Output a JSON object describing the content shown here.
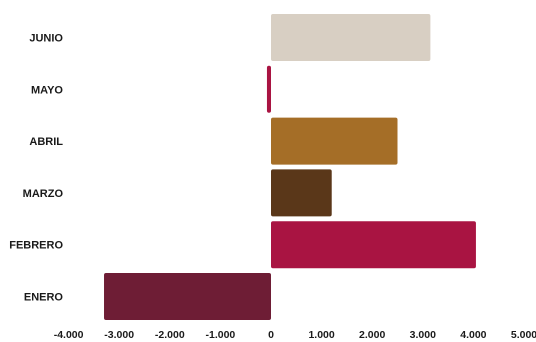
{
  "chart_data": {
    "type": "bar",
    "orientation": "horizontal",
    "categories": [
      "ENERO",
      "FEBRERO",
      "MARZO",
      "ABRIL",
      "MAYO",
      "JUNIO"
    ],
    "values": [
      -3300,
      4050,
      1200,
      2500,
      -80,
      3150
    ],
    "colors": [
      "#6e1d35",
      "#a91442",
      "#5a3719",
      "#a56e27",
      "#a91442",
      "#d8cfc3"
    ],
    "xlim": [
      -4000,
      5000
    ],
    "xticks": [
      -4000,
      -3000,
      -2000,
      -1000,
      0,
      1000,
      2000,
      3000,
      4000,
      5000
    ],
    "xtick_labels": [
      "-4.000",
      "-3.000",
      "-2.000",
      "-1.000",
      "0",
      "1.000",
      "2.000",
      "3.000",
      "4.000",
      "5.000"
    ],
    "grid": false,
    "legend": "none"
  }
}
